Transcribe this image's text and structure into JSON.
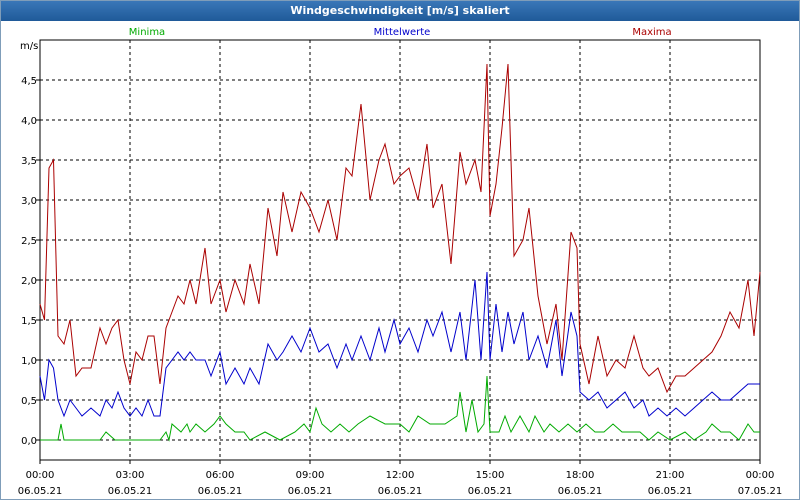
{
  "chart_data": {
    "type": "line",
    "title": "Windgeschwindigkeit [m/s] skaliert",
    "ylabel": "m/s",
    "ylim": [
      -0.25,
      5.0
    ],
    "y_ticks": [
      "0,0",
      "0,5",
      "1,0",
      "1,5",
      "2,0",
      "2,5",
      "3,0",
      "3,5",
      "4,0",
      "4,5"
    ],
    "xlim": [
      0,
      24
    ],
    "x_ticks": [
      {
        "time": "00:00",
        "date": "06.05.21"
      },
      {
        "time": "03:00",
        "date": "06.05.21"
      },
      {
        "time": "06:00",
        "date": "06.05.21"
      },
      {
        "time": "09:00",
        "date": "06.05.21"
      },
      {
        "time": "12:00",
        "date": "06.05.21"
      },
      {
        "time": "15:00",
        "date": "06.05.21"
      },
      {
        "time": "18:00",
        "date": "06.05.21"
      },
      {
        "time": "21:00",
        "date": "06.05.21"
      },
      {
        "time": "00:00",
        "date": "07.05.21"
      }
    ],
    "grid": true,
    "series": [
      {
        "name": "Minima",
        "color": "#00aa00",
        "x_unit": "hours",
        "values": [
          [
            0,
            0
          ],
          [
            0.6,
            0
          ],
          [
            0.7,
            0.2
          ],
          [
            0.8,
            0
          ],
          [
            1.5,
            0
          ],
          [
            2.0,
            0
          ],
          [
            2.2,
            0.1
          ],
          [
            2.5,
            0
          ],
          [
            3.5,
            0
          ],
          [
            4.0,
            0
          ],
          [
            4.2,
            0.1
          ],
          [
            4.3,
            0
          ],
          [
            4.4,
            0.2
          ],
          [
            4.7,
            0.1
          ],
          [
            4.9,
            0.2
          ],
          [
            5.0,
            0.1
          ],
          [
            5.2,
            0.2
          ],
          [
            5.5,
            0.1
          ],
          [
            5.8,
            0.2
          ],
          [
            6.0,
            0.3
          ],
          [
            6.2,
            0.2
          ],
          [
            6.5,
            0.1
          ],
          [
            6.8,
            0.1
          ],
          [
            7.0,
            0.0
          ],
          [
            7.5,
            0.1
          ],
          [
            8.0,
            0
          ],
          [
            8.5,
            0.1
          ],
          [
            8.8,
            0.2
          ],
          [
            9.0,
            0.1
          ],
          [
            9.2,
            0.4
          ],
          [
            9.4,
            0.2
          ],
          [
            9.7,
            0.1
          ],
          [
            10.0,
            0.2
          ],
          [
            10.3,
            0.1
          ],
          [
            10.6,
            0.2
          ],
          [
            11.0,
            0.3
          ],
          [
            11.5,
            0.2
          ],
          [
            12.0,
            0.2
          ],
          [
            12.3,
            0.1
          ],
          [
            12.6,
            0.3
          ],
          [
            13.0,
            0.2
          ],
          [
            13.5,
            0.2
          ],
          [
            13.9,
            0.3
          ],
          [
            14.0,
            0.6
          ],
          [
            14.2,
            0.1
          ],
          [
            14.4,
            0.5
          ],
          [
            14.6,
            0.1
          ],
          [
            14.8,
            0.2
          ],
          [
            14.9,
            0.8
          ],
          [
            15.0,
            0.1
          ],
          [
            15.3,
            0.1
          ],
          [
            15.5,
            0.3
          ],
          [
            15.7,
            0.1
          ],
          [
            16.0,
            0.3
          ],
          [
            16.3,
            0.1
          ],
          [
            16.5,
            0.3
          ],
          [
            16.8,
            0.1
          ],
          [
            17.0,
            0.2
          ],
          [
            17.3,
            0.1
          ],
          [
            17.6,
            0.2
          ],
          [
            17.9,
            0.1
          ],
          [
            18.2,
            0.2
          ],
          [
            18.5,
            0.1
          ],
          [
            18.8,
            0.1
          ],
          [
            19.1,
            0.2
          ],
          [
            19.4,
            0.1
          ],
          [
            19.7,
            0.1
          ],
          [
            20.0,
            0.1
          ],
          [
            20.3,
            0.0
          ],
          [
            20.6,
            0.1
          ],
          [
            21.0,
            0.0
          ],
          [
            21.5,
            0.1
          ],
          [
            21.8,
            0.0
          ],
          [
            22.2,
            0.1
          ],
          [
            22.4,
            0.2
          ],
          [
            22.7,
            0.1
          ],
          [
            23.0,
            0.1
          ],
          [
            23.3,
            0.0
          ],
          [
            23.6,
            0.2
          ],
          [
            23.8,
            0.1
          ],
          [
            24.0,
            0.1
          ]
        ]
      },
      {
        "name": "Mittelwerte",
        "color": "#0000cc",
        "x_unit": "hours",
        "values": [
          [
            0,
            0.8
          ],
          [
            0.15,
            0.5
          ],
          [
            0.3,
            1.0
          ],
          [
            0.45,
            0.9
          ],
          [
            0.6,
            0.5
          ],
          [
            0.8,
            0.3
          ],
          [
            1.0,
            0.5
          ],
          [
            1.2,
            0.4
          ],
          [
            1.4,
            0.3
          ],
          [
            1.7,
            0.4
          ],
          [
            2.0,
            0.3
          ],
          [
            2.2,
            0.5
          ],
          [
            2.4,
            0.4
          ],
          [
            2.6,
            0.6
          ],
          [
            2.8,
            0.4
          ],
          [
            3.0,
            0.3
          ],
          [
            3.2,
            0.4
          ],
          [
            3.4,
            0.3
          ],
          [
            3.6,
            0.5
          ],
          [
            3.8,
            0.3
          ],
          [
            4.0,
            0.3
          ],
          [
            4.2,
            0.9
          ],
          [
            4.4,
            1.0
          ],
          [
            4.6,
            1.1
          ],
          [
            4.8,
            1.0
          ],
          [
            5.0,
            1.1
          ],
          [
            5.2,
            1.0
          ],
          [
            5.5,
            1.0
          ],
          [
            5.7,
            0.8
          ],
          [
            6.0,
            1.1
          ],
          [
            6.2,
            0.7
          ],
          [
            6.5,
            0.9
          ],
          [
            6.8,
            0.7
          ],
          [
            7.0,
            0.9
          ],
          [
            7.3,
            0.7
          ],
          [
            7.6,
            1.2
          ],
          [
            7.9,
            1.0
          ],
          [
            8.1,
            1.1
          ],
          [
            8.4,
            1.3
          ],
          [
            8.7,
            1.1
          ],
          [
            9.0,
            1.4
          ],
          [
            9.3,
            1.1
          ],
          [
            9.6,
            1.2
          ],
          [
            9.9,
            0.9
          ],
          [
            10.2,
            1.2
          ],
          [
            10.4,
            1.0
          ],
          [
            10.7,
            1.3
          ],
          [
            11.0,
            1.0
          ],
          [
            11.3,
            1.4
          ],
          [
            11.5,
            1.1
          ],
          [
            11.8,
            1.5
          ],
          [
            12.0,
            1.2
          ],
          [
            12.3,
            1.4
          ],
          [
            12.6,
            1.1
          ],
          [
            12.9,
            1.5
          ],
          [
            13.1,
            1.3
          ],
          [
            13.4,
            1.6
          ],
          [
            13.7,
            1.1
          ],
          [
            14.0,
            1.6
          ],
          [
            14.2,
            1.0
          ],
          [
            14.5,
            2.0
          ],
          [
            14.7,
            1.0
          ],
          [
            14.9,
            2.1
          ],
          [
            15.0,
            1.0
          ],
          [
            15.2,
            1.7
          ],
          [
            15.4,
            1.1
          ],
          [
            15.6,
            1.6
          ],
          [
            15.8,
            1.2
          ],
          [
            16.1,
            1.6
          ],
          [
            16.3,
            1.0
          ],
          [
            16.6,
            1.3
          ],
          [
            16.9,
            0.9
          ],
          [
            17.2,
            1.5
          ],
          [
            17.4,
            0.8
          ],
          [
            17.7,
            1.6
          ],
          [
            17.9,
            1.3
          ],
          [
            18.0,
            0.6
          ],
          [
            18.3,
            0.5
          ],
          [
            18.6,
            0.6
          ],
          [
            18.9,
            0.4
          ],
          [
            19.2,
            0.5
          ],
          [
            19.5,
            0.6
          ],
          [
            19.8,
            0.4
          ],
          [
            20.1,
            0.5
          ],
          [
            20.3,
            0.3
          ],
          [
            20.6,
            0.4
          ],
          [
            20.9,
            0.3
          ],
          [
            21.2,
            0.4
          ],
          [
            21.5,
            0.3
          ],
          [
            21.8,
            0.4
          ],
          [
            22.1,
            0.5
          ],
          [
            22.4,
            0.6
          ],
          [
            22.7,
            0.5
          ],
          [
            23.0,
            0.5
          ],
          [
            23.3,
            0.6
          ],
          [
            23.6,
            0.7
          ],
          [
            24.0,
            0.7
          ]
        ]
      },
      {
        "name": "Maxima",
        "color": "#aa0000",
        "x_unit": "hours",
        "values": [
          [
            0,
            1.7
          ],
          [
            0.15,
            1.5
          ],
          [
            0.3,
            3.4
          ],
          [
            0.45,
            3.5
          ],
          [
            0.6,
            1.3
          ],
          [
            0.8,
            1.2
          ],
          [
            1.0,
            1.5
          ],
          [
            1.2,
            0.8
          ],
          [
            1.4,
            0.9
          ],
          [
            1.7,
            0.9
          ],
          [
            2.0,
            1.4
          ],
          [
            2.2,
            1.2
          ],
          [
            2.4,
            1.4
          ],
          [
            2.6,
            1.5
          ],
          [
            2.8,
            1.0
          ],
          [
            3.0,
            0.7
          ],
          [
            3.2,
            1.1
          ],
          [
            3.4,
            1.0
          ],
          [
            3.6,
            1.3
          ],
          [
            3.8,
            1.3
          ],
          [
            4.0,
            0.7
          ],
          [
            4.2,
            1.4
          ],
          [
            4.4,
            1.6
          ],
          [
            4.6,
            1.8
          ],
          [
            4.8,
            1.7
          ],
          [
            5.0,
            2.0
          ],
          [
            5.2,
            1.7
          ],
          [
            5.5,
            2.4
          ],
          [
            5.7,
            1.7
          ],
          [
            6.0,
            2.0
          ],
          [
            6.2,
            1.6
          ],
          [
            6.5,
            2.0
          ],
          [
            6.8,
            1.7
          ],
          [
            7.0,
            2.2
          ],
          [
            7.3,
            1.7
          ],
          [
            7.6,
            2.9
          ],
          [
            7.9,
            2.3
          ],
          [
            8.1,
            3.1
          ],
          [
            8.4,
            2.6
          ],
          [
            8.7,
            3.1
          ],
          [
            9.0,
            2.9
          ],
          [
            9.3,
            2.6
          ],
          [
            9.6,
            3.0
          ],
          [
            9.9,
            2.5
          ],
          [
            10.2,
            3.4
          ],
          [
            10.4,
            3.3
          ],
          [
            10.7,
            4.2
          ],
          [
            11.0,
            3.0
          ],
          [
            11.3,
            3.5
          ],
          [
            11.5,
            3.7
          ],
          [
            11.8,
            3.2
          ],
          [
            12.0,
            3.3
          ],
          [
            12.3,
            3.4
          ],
          [
            12.6,
            3.0
          ],
          [
            12.9,
            3.7
          ],
          [
            13.1,
            2.9
          ],
          [
            13.4,
            3.2
          ],
          [
            13.7,
            2.2
          ],
          [
            14.0,
            3.6
          ],
          [
            14.2,
            3.2
          ],
          [
            14.5,
            3.5
          ],
          [
            14.7,
            3.1
          ],
          [
            14.9,
            4.7
          ],
          [
            15.0,
            2.8
          ],
          [
            15.2,
            3.2
          ],
          [
            15.4,
            3.9
          ],
          [
            15.6,
            4.7
          ],
          [
            15.8,
            2.3
          ],
          [
            16.1,
            2.5
          ],
          [
            16.3,
            2.9
          ],
          [
            16.6,
            1.8
          ],
          [
            16.9,
            1.2
          ],
          [
            17.2,
            1.7
          ],
          [
            17.4,
            1.0
          ],
          [
            17.7,
            2.6
          ],
          [
            17.9,
            2.4
          ],
          [
            18.0,
            1.2
          ],
          [
            18.3,
            0.7
          ],
          [
            18.6,
            1.3
          ],
          [
            18.9,
            0.8
          ],
          [
            19.2,
            1.0
          ],
          [
            19.5,
            0.9
          ],
          [
            19.8,
            1.3
          ],
          [
            20.1,
            0.9
          ],
          [
            20.3,
            0.8
          ],
          [
            20.6,
            0.9
          ],
          [
            20.9,
            0.6
          ],
          [
            21.2,
            0.8
          ],
          [
            21.5,
            0.8
          ],
          [
            21.8,
            0.9
          ],
          [
            22.1,
            1.0
          ],
          [
            22.4,
            1.1
          ],
          [
            22.7,
            1.3
          ],
          [
            23.0,
            1.6
          ],
          [
            23.3,
            1.4
          ],
          [
            23.6,
            2.0
          ],
          [
            23.8,
            1.3
          ],
          [
            24.0,
            2.1
          ]
        ]
      }
    ]
  }
}
